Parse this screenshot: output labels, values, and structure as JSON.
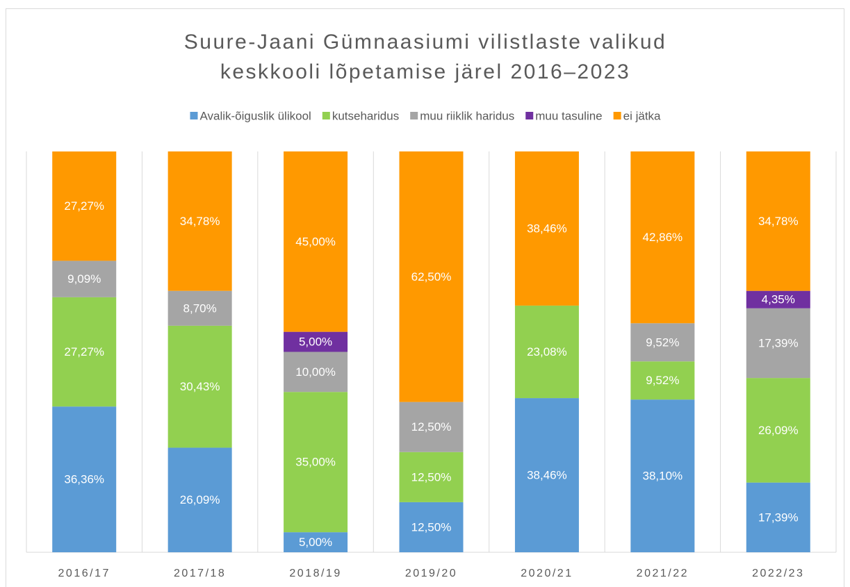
{
  "chart_data": {
    "type": "stacked_bar",
    "title": [
      "Suure-Jaani Gümnaasiumi vilistlaste valikud",
      "keskkooli lõpetamise järel 2016–2023"
    ],
    "categories": [
      "2016/17",
      "2017/18",
      "2018/19",
      "2019/20",
      "2020/21",
      "2021/22",
      "2022/23"
    ],
    "ylim": [
      0,
      100
    ],
    "legend": "top",
    "series": [
      {
        "name": "Avalik-õiguslik ülikool",
        "color": "#5b9bd5",
        "values": [
          36.36,
          26.09,
          5.0,
          12.5,
          38.46,
          38.1,
          17.39
        ],
        "value_labels": [
          "36,36%",
          "26,09%",
          "5,00%",
          "12,50%",
          "38,46%",
          "38,10%",
          "17,39%"
        ]
      },
      {
        "name": "kutseharidus",
        "color": "#92d050",
        "values": [
          27.27,
          30.43,
          35.0,
          12.5,
          23.08,
          9.52,
          26.09
        ],
        "value_labels": [
          "27,27%",
          "30,43%",
          "35,00%",
          "12,50%",
          "23,08%",
          "9,52%",
          "26,09%"
        ]
      },
      {
        "name": "muu riiklik haridus",
        "color": "#a5a5a5",
        "values": [
          9.09,
          8.7,
          10.0,
          12.5,
          null,
          9.52,
          17.39
        ],
        "value_labels": [
          "9,09%",
          "8,70%",
          "10,00%",
          "12,50%",
          null,
          "9,52%",
          "17,39%"
        ]
      },
      {
        "name": "muu tasuline",
        "color": "#7030a0",
        "values": [
          null,
          null,
          5.0,
          null,
          null,
          null,
          4.35
        ],
        "value_labels": [
          null,
          null,
          "5,00%",
          null,
          null,
          null,
          "4,35%"
        ]
      },
      {
        "name": "ei jätka",
        "color": "#ff9900",
        "values": [
          27.27,
          34.78,
          45.0,
          62.5,
          38.46,
          42.86,
          34.78
        ],
        "value_labels": [
          "27,27%",
          "34,78%",
          "45,00%",
          "62,50%",
          "38,46%",
          "42,86%",
          "34,78%"
        ]
      }
    ]
  }
}
